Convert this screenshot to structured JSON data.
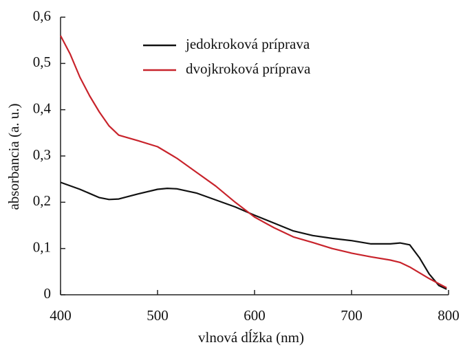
{
  "chart_data": {
    "type": "line",
    "xlabel": "vlnová dĺžka (nm)",
    "ylabel": "absorbancia (a. u.)",
    "xlim": [
      400,
      800
    ],
    "xticks": [
      400,
      500,
      600,
      700,
      800
    ],
    "ylim": [
      0,
      0.6
    ],
    "yticks": [
      0,
      {
        "value": 0.1,
        "label": "0,1"
      },
      {
        "value": 0.2,
        "label": "0,2"
      },
      {
        "value": 0.3,
        "label": "0,3"
      },
      {
        "value": 0.4,
        "label": "0,4"
      },
      {
        "value": 0.5,
        "label": "0,5"
      },
      {
        "value": 0.6,
        "label": "0,6"
      }
    ],
    "legend": "top",
    "series": [
      {
        "name": "jedokroková príprava",
        "color": "#111111",
        "x": [
          400,
          420,
          440,
          450,
          460,
          480,
          500,
          510,
          520,
          540,
          560,
          580,
          600,
          620,
          640,
          660,
          680,
          700,
          720,
          740,
          750,
          760,
          770,
          780,
          790,
          798
        ],
        "values": [
          0.243,
          0.228,
          0.21,
          0.206,
          0.207,
          0.218,
          0.228,
          0.23,
          0.229,
          0.22,
          0.205,
          0.19,
          0.172,
          0.155,
          0.138,
          0.128,
          0.122,
          0.117,
          0.11,
          0.11,
          0.112,
          0.108,
          0.08,
          0.045,
          0.02,
          0.012
        ]
      },
      {
        "name": "dvojkroková príprava",
        "color": "#c8232b",
        "x": [
          400,
          410,
          420,
          430,
          440,
          450,
          460,
          480,
          500,
          520,
          540,
          560,
          580,
          600,
          620,
          640,
          660,
          680,
          700,
          720,
          740,
          750,
          760,
          780,
          798
        ],
        "values": [
          0.56,
          0.52,
          0.47,
          0.43,
          0.395,
          0.365,
          0.345,
          0.333,
          0.32,
          0.295,
          0.265,
          0.235,
          0.2,
          0.168,
          0.145,
          0.125,
          0.113,
          0.1,
          0.09,
          0.082,
          0.075,
          0.07,
          0.06,
          0.035,
          0.015
        ]
      }
    ]
  }
}
